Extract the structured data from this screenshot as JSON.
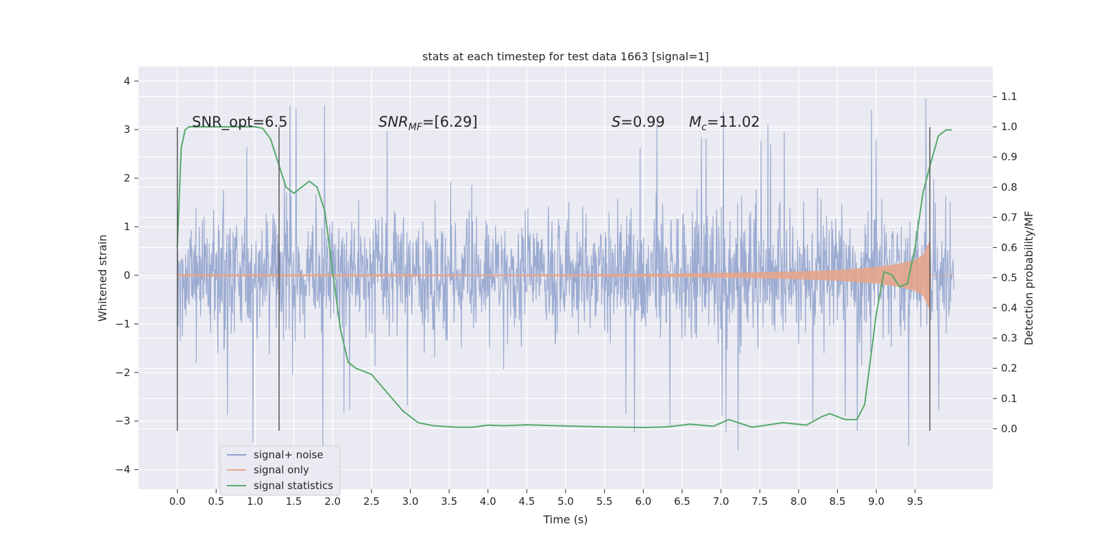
{
  "chart_data": {
    "type": "line",
    "title": "stats at each timestep for test data 1663 [signal=1]",
    "xlabel": "Time (s)",
    "ylabel_left": "Whitened strain",
    "ylabel_right": "Detection probability/MF",
    "xlim": [
      -0.5,
      10.5
    ],
    "ylim_left": [
      -4.4,
      4.3
    ],
    "ylim_right": [
      -0.2,
      1.2
    ],
    "x_ticks": [
      0.0,
      0.5,
      1.0,
      1.5,
      2.0,
      2.5,
      3.0,
      3.5,
      4.0,
      4.5,
      5.0,
      5.5,
      6.0,
      6.5,
      7.0,
      7.5,
      8.0,
      8.5,
      9.0,
      9.5
    ],
    "x_tick_labels": [
      "0.0",
      "0.5",
      "1.0",
      "1.5",
      "2.0",
      "2.5",
      "3.0",
      "3.5",
      "4.0",
      "4.5",
      "5.0",
      "5.5",
      "6.0",
      "6.5",
      "7.0",
      "7.5",
      "8.0",
      "8.5",
      "9.0",
      "9.5"
    ],
    "y_left_ticks": [
      -4,
      -3,
      -2,
      -1,
      0,
      1,
      2,
      3,
      4
    ],
    "y_left_tick_labels": [
      "−4",
      "−3",
      "−2",
      "−1",
      "0",
      "1",
      "2",
      "3",
      "4"
    ],
    "y_right_ticks": [
      0.0,
      0.1,
      0.2,
      0.3,
      0.4,
      0.5,
      0.6,
      0.7,
      0.8,
      0.9,
      1.0,
      1.1
    ],
    "y_right_tick_labels": [
      "0.0",
      "0.1",
      "0.2",
      "0.3",
      "0.4",
      "0.5",
      "0.6",
      "0.7",
      "0.8",
      "0.9",
      "1.0",
      "1.1"
    ],
    "grid": true,
    "legend_position": "lower-left",
    "annotations": {
      "snr_opt": "SNR_opt=6.5",
      "snr_mf_name": "SNR",
      "snr_mf_sub": "MF",
      "snr_mf_value": "=[6.29]",
      "s_name": "S",
      "s_value": "=0.99",
      "mc_name": "M",
      "mc_sub": "c",
      "mc_value": "=11.02"
    },
    "vertical_markers": [
      {
        "x": 0.0,
        "y_range": [
          -3.2,
          3.05
        ]
      },
      {
        "x": 1.31,
        "y_range": [
          -3.2,
          3.05
        ]
      },
      {
        "x": 9.69,
        "y_range": [
          -3.2,
          3.05
        ]
      }
    ],
    "series": [
      {
        "name": "signal+ noise",
        "color": "#8da0cb",
        "axis": "left",
        "x_range": [
          0.0,
          10.0
        ],
        "band_std": 0.65,
        "extremes_max": 3.9,
        "extremes_min": -3.8
      },
      {
        "name": "signal only",
        "color": "#e5a58b",
        "axis": "left",
        "x_range": [
          0.0,
          10.0
        ],
        "amplitude_envelope": {
          "x": [
            0.0,
            2.0,
            4.0,
            6.0,
            7.0,
            8.0,
            8.5,
            9.0,
            9.3,
            9.5,
            9.6,
            9.69,
            9.7,
            10.0
          ],
          "amp": [
            0.01,
            0.01,
            0.015,
            0.03,
            0.05,
            0.08,
            0.11,
            0.17,
            0.24,
            0.32,
            0.42,
            0.72,
            0.0,
            0.0
          ]
        }
      },
      {
        "name": "signal statistics",
        "color": "#55a868",
        "axis": "right",
        "x": [
          0.0,
          0.05,
          0.1,
          0.15,
          0.25,
          0.4,
          0.6,
          0.8,
          1.0,
          1.1,
          1.2,
          1.3,
          1.4,
          1.5,
          1.6,
          1.7,
          1.8,
          1.9,
          2.0,
          2.1,
          2.2,
          2.3,
          2.5,
          2.7,
          2.9,
          3.1,
          3.3,
          3.6,
          3.8,
          4.0,
          4.2,
          4.5,
          5.0,
          5.5,
          6.0,
          6.3,
          6.6,
          6.9,
          7.1,
          7.4,
          7.8,
          8.1,
          8.3,
          8.4,
          8.6,
          8.75,
          8.85,
          9.0,
          9.1,
          9.2,
          9.3,
          9.4,
          9.5,
          9.6,
          9.7,
          9.8,
          9.9,
          9.97
        ],
        "y": [
          0.6,
          0.93,
          0.99,
          1.0,
          1.0,
          1.0,
          1.0,
          1.0,
          1.0,
          0.995,
          0.96,
          0.88,
          0.8,
          0.78,
          0.8,
          0.82,
          0.8,
          0.72,
          0.52,
          0.33,
          0.22,
          0.2,
          0.18,
          0.12,
          0.06,
          0.02,
          0.01,
          0.005,
          0.005,
          0.012,
          0.01,
          0.013,
          0.009,
          0.006,
          0.004,
          0.006,
          0.015,
          0.008,
          0.03,
          0.005,
          0.02,
          0.012,
          0.04,
          0.05,
          0.03,
          0.03,
          0.08,
          0.38,
          0.52,
          0.51,
          0.47,
          0.48,
          0.6,
          0.78,
          0.88,
          0.97,
          0.99,
          0.99
        ]
      }
    ]
  }
}
